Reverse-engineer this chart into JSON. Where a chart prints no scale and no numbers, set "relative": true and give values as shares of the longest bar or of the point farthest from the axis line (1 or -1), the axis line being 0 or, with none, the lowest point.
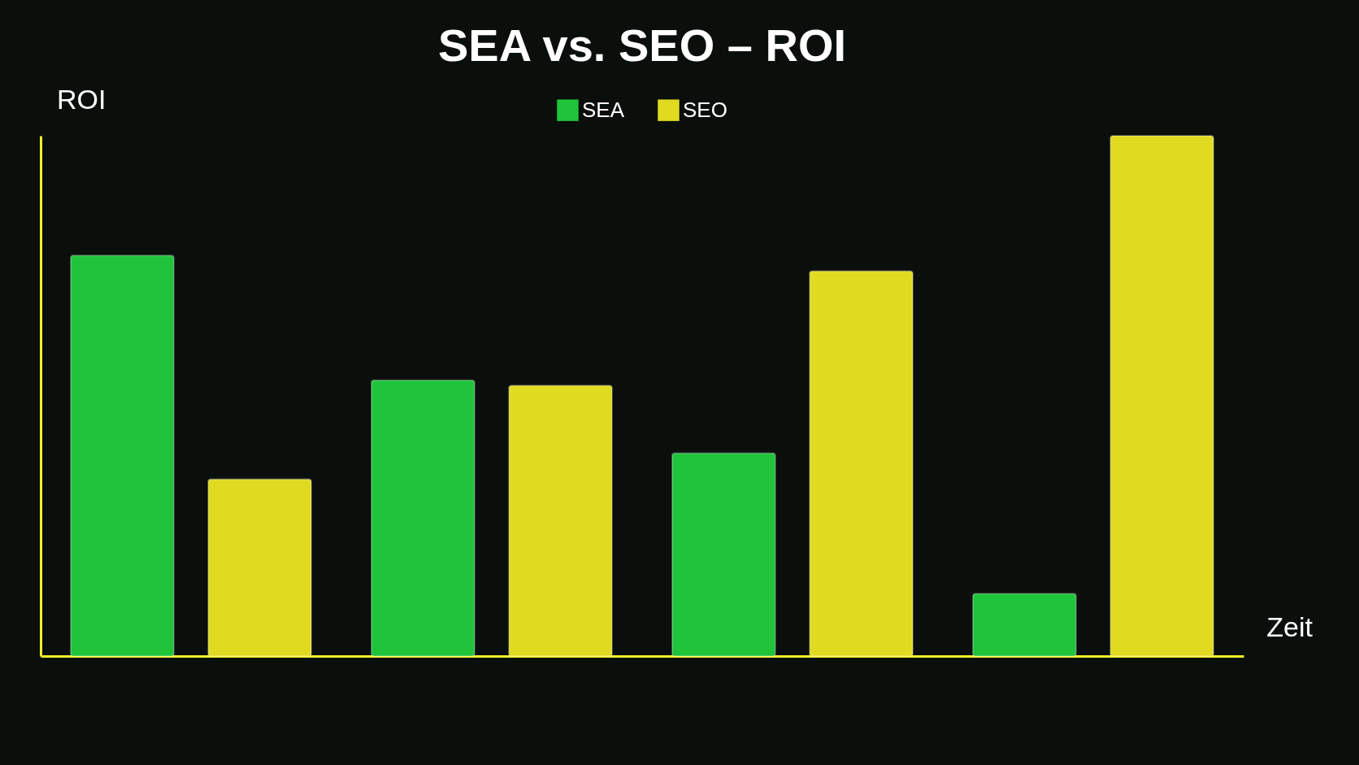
{
  "chart_data": {
    "type": "bar",
    "title": "SEA vs. SEO – ROI",
    "xlabel": "Zeit",
    "ylabel": "ROI",
    "categories": [
      null,
      null,
      null,
      null
    ],
    "relative": true,
    "legend": "top",
    "series": [
      {
        "name": "SEA",
        "color": "#1fc43a",
        "values": [
          0.77,
          0.53,
          0.39,
          0.12
        ]
      },
      {
        "name": "SEO",
        "color": "#e0db20",
        "values": [
          0.34,
          0.52,
          0.74,
          1.0
        ]
      }
    ]
  }
}
